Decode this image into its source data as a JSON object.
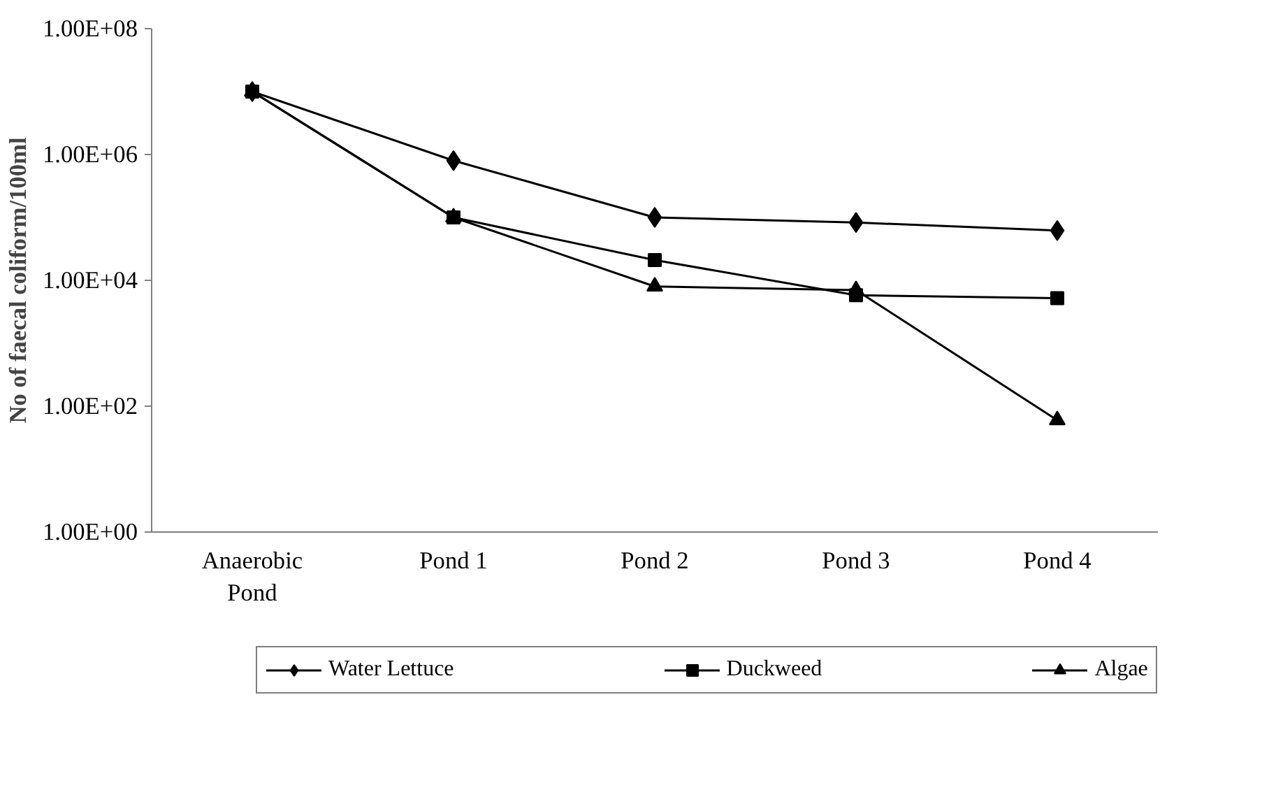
{
  "chart_data": {
    "type": "line",
    "ylabel": "No of faecal coliform/100ml",
    "categories": [
      "Anaerobic Pond",
      "Pond 1",
      "Pond 2",
      "Pond 3",
      "Pond 4"
    ],
    "series": [
      {
        "name": "Water Lettuce",
        "color": "#000000",
        "marker": "diamond",
        "values": [
          10000000,
          800000,
          100000,
          83000,
          62000
        ]
      },
      {
        "name": "Duckweed",
        "color": "#000000",
        "marker": "square",
        "values": [
          10000000,
          100000,
          21000,
          5800,
          5200
        ]
      },
      {
        "name": "Algae",
        "color": "#000000",
        "marker": "triangle",
        "values": [
          10000000,
          100000,
          8000,
          7000,
          60
        ]
      }
    ],
    "log": "y",
    "ylim": [
      1,
      100000000
    ],
    "yticks": [
      {
        "value": 1,
        "label": "1.00E+00"
      },
      {
        "value": 100,
        "label": "1.00E+02"
      },
      {
        "value": 10000,
        "label": "1.00E+04"
      },
      {
        "value": 1000000,
        "label": "1.00E+06"
      },
      {
        "value": 100000000,
        "label": "1.00E+08"
      }
    ],
    "grid": false,
    "legend": "bottom",
    "line_style": "solid"
  }
}
